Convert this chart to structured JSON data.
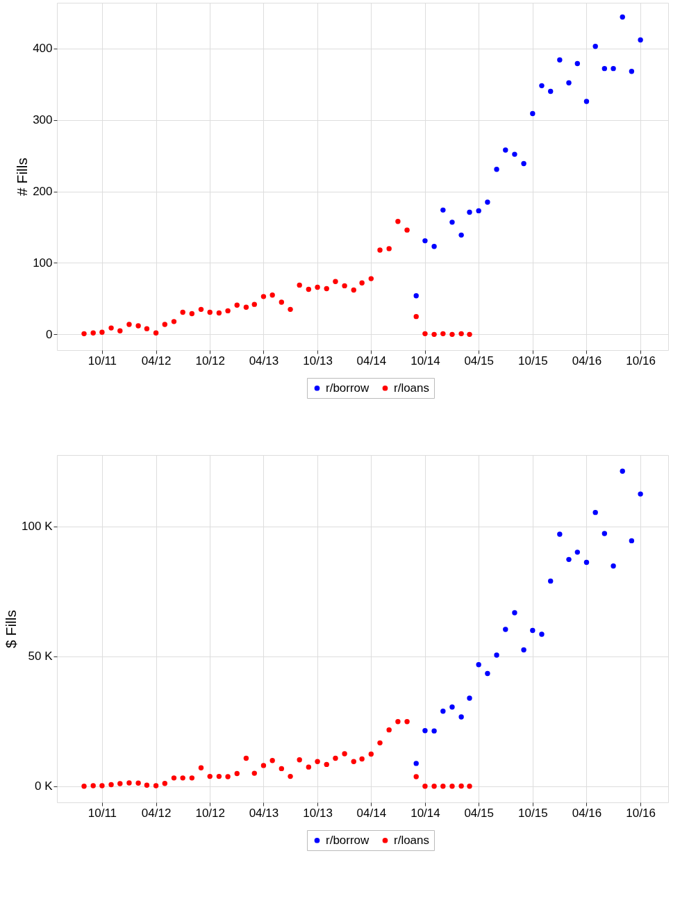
{
  "chart_data": [
    {
      "type": "scatter",
      "ylabel": "# Fills",
      "xlim": [
        "2011-05-01",
        "2017-01-03"
      ],
      "ylim": [
        -22,
        464
      ],
      "yticks": [
        0,
        100,
        200,
        300,
        400
      ],
      "xticks": [
        {
          "value": "2011-10",
          "label": "10/11"
        },
        {
          "value": "2012-04",
          "label": "04/12"
        },
        {
          "value": "2012-10",
          "label": "10/12"
        },
        {
          "value": "2013-04",
          "label": "04/13"
        },
        {
          "value": "2013-10",
          "label": "10/13"
        },
        {
          "value": "2014-04",
          "label": "04/14"
        },
        {
          "value": "2014-10",
          "label": "10/14"
        },
        {
          "value": "2015-04",
          "label": "04/15"
        },
        {
          "value": "2015-10",
          "label": "10/15"
        },
        {
          "value": "2016-04",
          "label": "04/16"
        },
        {
          "value": "2016-10",
          "label": "10/16"
        }
      ],
      "grid": true,
      "legend": "bottom",
      "marker": "circle",
      "series": [
        {
          "name": "r/borrow",
          "color": "#0000ff",
          "x": [
            "2014-09",
            "2014-10",
            "2014-11",
            "2014-12",
            "2015-01",
            "2015-02",
            "2015-03",
            "2015-04",
            "2015-05",
            "2015-06",
            "2015-07",
            "2015-08",
            "2015-09",
            "2015-10",
            "2015-11",
            "2015-12",
            "2016-01",
            "2016-02",
            "2016-03",
            "2016-04",
            "2016-05",
            "2016-06",
            "2016-07",
            "2016-08",
            "2016-09",
            "2016-10"
          ],
          "values": [
            54,
            131,
            123,
            174,
            157,
            139,
            171,
            173,
            185,
            231,
            258,
            252,
            239,
            309,
            348,
            340,
            384,
            352,
            379,
            326,
            403,
            372,
            372,
            444,
            368,
            412
          ]
        },
        {
          "name": "r/loans",
          "color": "#ff0000",
          "x": [
            "2011-08",
            "2011-09",
            "2011-10",
            "2011-11",
            "2011-12",
            "2012-01",
            "2012-02",
            "2012-03",
            "2012-04",
            "2012-05",
            "2012-06",
            "2012-07",
            "2012-08",
            "2012-09",
            "2012-10",
            "2012-11",
            "2012-12",
            "2013-01",
            "2013-02",
            "2013-03",
            "2013-04",
            "2013-05",
            "2013-06",
            "2013-07",
            "2013-08",
            "2013-09",
            "2013-10",
            "2013-11",
            "2013-12",
            "2014-01",
            "2014-02",
            "2014-03",
            "2014-04",
            "2014-05",
            "2014-06",
            "2014-07",
            "2014-08",
            "2014-09",
            "2014-10",
            "2014-11",
            "2014-12",
            "2015-01",
            "2015-02",
            "2015-03"
          ],
          "values": [
            1,
            2,
            3,
            9,
            5,
            14,
            12,
            8,
            2,
            14,
            18,
            31,
            29,
            35,
            31,
            30,
            33,
            41,
            38,
            42,
            53,
            55,
            45,
            35,
            69,
            63,
            66,
            64,
            74,
            68,
            62,
            72,
            78,
            118,
            120,
            158,
            146,
            25,
            1,
            0,
            1,
            0,
            1,
            0
          ]
        }
      ]
    },
    {
      "type": "scatter",
      "ylabel": "$ Fills",
      "xlim": [
        "2011-05-01",
        "2017-01-03"
      ],
      "ylim": [
        -6.2,
        127.5
      ],
      "yticks": [
        {
          "value": 0,
          "label": "0 K"
        },
        {
          "value": 50,
          "label": "50 K"
        },
        {
          "value": 100,
          "label": "100 K"
        }
      ],
      "xticks": [
        {
          "value": "2011-10",
          "label": "10/11"
        },
        {
          "value": "2012-04",
          "label": "04/12"
        },
        {
          "value": "2012-10",
          "label": "10/12"
        },
        {
          "value": "2013-04",
          "label": "04/13"
        },
        {
          "value": "2013-10",
          "label": "10/13"
        },
        {
          "value": "2014-04",
          "label": "04/14"
        },
        {
          "value": "2014-10",
          "label": "10/14"
        },
        {
          "value": "2015-04",
          "label": "04/15"
        },
        {
          "value": "2015-10",
          "label": "10/15"
        },
        {
          "value": "2016-04",
          "label": "04/16"
        },
        {
          "value": "2016-10",
          "label": "10/16"
        }
      ],
      "grid": true,
      "legend": "bottom",
      "marker": "circle",
      "series": [
        {
          "name": "r/borrow",
          "color": "#0000ff",
          "x": [
            "2014-09",
            "2014-10",
            "2014-11",
            "2014-12",
            "2015-01",
            "2015-02",
            "2015-03",
            "2015-04",
            "2015-05",
            "2015-06",
            "2015-07",
            "2015-08",
            "2015-09",
            "2015-10",
            "2015-11",
            "2015-12",
            "2016-01",
            "2016-02",
            "2016-03",
            "2016-04",
            "2016-05",
            "2016-06",
            "2016-07",
            "2016-08",
            "2016-09",
            "2016-10"
          ],
          "values": [
            8.8,
            21.4,
            21.3,
            28.9,
            30.5,
            26.7,
            33.9,
            46.8,
            43.4,
            50.5,
            60.4,
            66.8,
            52.5,
            60.0,
            58.5,
            79.0,
            97.0,
            87.3,
            90.1,
            86.2,
            105.4,
            97.3,
            84.8,
            121.3,
            94.5,
            112.5
          ]
        },
        {
          "name": "r/loans",
          "color": "#ff0000",
          "x": [
            "2011-08",
            "2011-09",
            "2011-10",
            "2011-11",
            "2011-12",
            "2012-01",
            "2012-02",
            "2012-03",
            "2012-04",
            "2012-05",
            "2012-06",
            "2012-07",
            "2012-08",
            "2012-09",
            "2012-10",
            "2012-11",
            "2012-12",
            "2013-01",
            "2013-02",
            "2013-03",
            "2013-04",
            "2013-05",
            "2013-06",
            "2013-07",
            "2013-08",
            "2013-09",
            "2013-10",
            "2013-11",
            "2013-12",
            "2014-01",
            "2014-02",
            "2014-03",
            "2014-04",
            "2014-05",
            "2014-06",
            "2014-07",
            "2014-08",
            "2014-09",
            "2014-10",
            "2014-11",
            "2014-12",
            "2015-01",
            "2015-02",
            "2015-03"
          ],
          "values": [
            0,
            0.2,
            0.2,
            0.6,
            1.0,
            1.3,
            1.2,
            0.4,
            0.2,
            1.1,
            3.2,
            3.2,
            3.2,
            7.1,
            3.8,
            3.8,
            3.7,
            4.9,
            10.8,
            5.0,
            8.0,
            9.9,
            6.8,
            3.8,
            10.2,
            7.4,
            9.5,
            8.4,
            10.8,
            12.5,
            9.5,
            10.5,
            12.4,
            16.7,
            21.7,
            24.9,
            24.9,
            3.7,
            0,
            0,
            0,
            0,
            0.1,
            0
          ]
        }
      ]
    }
  ]
}
